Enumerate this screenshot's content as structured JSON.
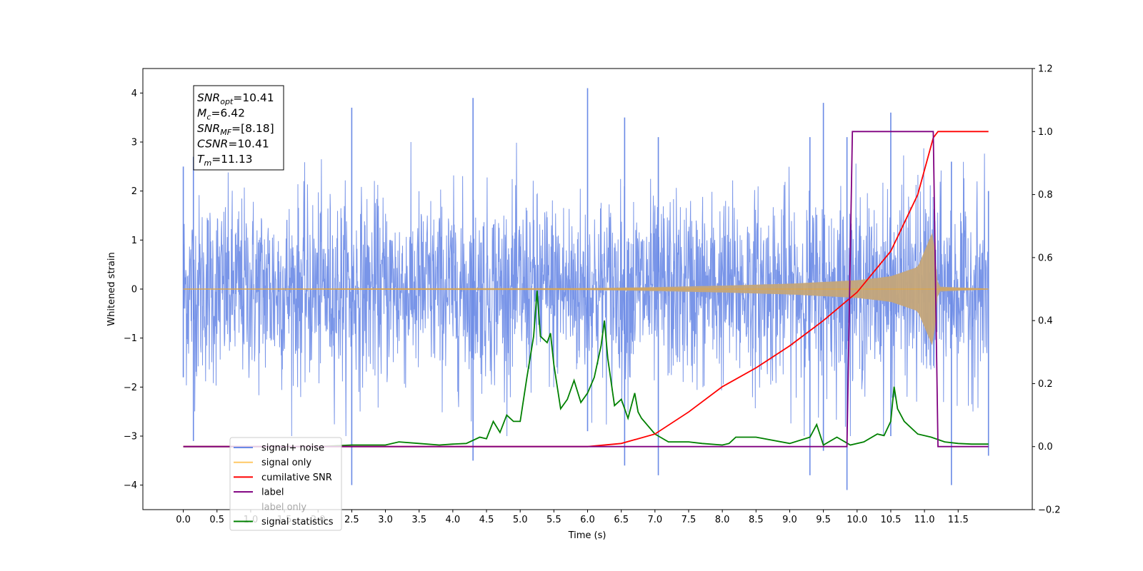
{
  "chart_data": {
    "type": "line",
    "title": "",
    "xlabel": "Time (s)",
    "ylabel": "Whitened strain",
    "y2label": "",
    "xlim": [
      -0.6,
      12.6
    ],
    "ylim": [
      -4.5,
      4.5
    ],
    "y2lim": [
      -0.2,
      1.2
    ],
    "xticks": [
      0.0,
      0.5,
      1.0,
      1.5,
      2.0,
      2.5,
      3.0,
      3.5,
      4.0,
      4.5,
      5.0,
      5.5,
      6.0,
      6.5,
      7.0,
      7.5,
      8.0,
      8.5,
      9.0,
      9.5,
      10.0,
      10.5,
      11.0,
      11.5
    ],
    "xtick_labels": [
      "0.0",
      "0.5",
      "1.0",
      "1.5",
      "2.0",
      "2.5",
      "3.0",
      "3.5",
      "4.0",
      "4.5",
      "5.0",
      "5.5",
      "6.0",
      "6.5",
      "7.0",
      "7.5",
      "8.0",
      "8.5",
      "9.0",
      "9.5",
      "10.0",
      "10.5",
      "11.0",
      "11.5"
    ],
    "yticks": [
      -4,
      -3,
      -2,
      -1,
      0,
      1,
      2,
      3,
      4
    ],
    "ytick_labels": [
      "−4",
      "−3",
      "−2",
      "−1",
      "0",
      "1",
      "2",
      "3",
      "4"
    ],
    "y2ticks": [
      -0.2,
      0.0,
      0.2,
      0.4,
      0.6,
      0.8,
      1.0,
      1.2
    ],
    "y2tick_labels": [
      "−0.2",
      "0.0",
      "0.2",
      "0.4",
      "0.6",
      "0.8",
      "1.0",
      "1.2"
    ],
    "grid": false,
    "legend_position": "lower-left",
    "colors": {
      "noise": "#6a8ae6",
      "signal": "#ffa500",
      "signal_fill": "#c4a57a",
      "cumulative_snr": "#ff0000",
      "label": "#800080",
      "statistics": "#008000"
    },
    "series": [
      {
        "name": "signal+ noise",
        "axis": "left",
        "style": "noise-band",
        "note_points": [
          {
            "x": 0.0,
            "y_max": 2.5,
            "y_min": -1.8
          },
          {
            "x": 0.15,
            "y_max": 2.7,
            "y_min": -3.1
          },
          {
            "x": 2.5,
            "y_max": 3.7,
            "y_min": -4.0
          },
          {
            "x": 4.3,
            "y_max": 3.9,
            "y_min": -3.5
          },
          {
            "x": 6.0,
            "y_max": 4.1,
            "y_min": -2.9
          },
          {
            "x": 6.55,
            "y_max": 3.5,
            "y_min": -3.6
          },
          {
            "x": 7.05,
            "y_max": 3.1,
            "y_min": -3.8
          },
          {
            "x": 9.3,
            "y_max": 3.1,
            "y_min": -3.8
          },
          {
            "x": 9.5,
            "y_max": 3.8,
            "y_min": -3.3
          },
          {
            "x": 9.85,
            "y_max": 3.1,
            "y_min": -4.1
          },
          {
            "x": 10.5,
            "y_max": 3.6,
            "y_min": -3.0
          },
          {
            "x": 11.4,
            "y_max": 2.6,
            "y_min": -4.0
          },
          {
            "x": 11.95,
            "y_max": 2.0,
            "y_min": -3.4
          }
        ]
      },
      {
        "name": "signal only",
        "axis": "left",
        "style": "chirp",
        "x_start": 0.0,
        "x_merge": 11.13,
        "x_end": 11.95,
        "amplitude_envelope": [
          {
            "x": 0.0,
            "amp": 0.01
          },
          {
            "x": 6.0,
            "amp": 0.02
          },
          {
            "x": 7.0,
            "amp": 0.04
          },
          {
            "x": 8.0,
            "amp": 0.07
          },
          {
            "x": 9.0,
            "amp": 0.11
          },
          {
            "x": 10.0,
            "amp": 0.18
          },
          {
            "x": 10.5,
            "amp": 0.26
          },
          {
            "x": 10.9,
            "amp": 0.45
          },
          {
            "x": 11.13,
            "amp": 1.2
          },
          {
            "x": 11.2,
            "amp": 0.05
          },
          {
            "x": 11.95,
            "amp": 0.01
          }
        ]
      },
      {
        "name": "cumilative SNR",
        "axis": "right",
        "x": [
          0.0,
          6.0,
          6.5,
          7.0,
          7.5,
          8.0,
          8.5,
          9.0,
          9.5,
          10.0,
          10.5,
          10.9,
          11.13,
          11.2,
          11.95
        ],
        "y": [
          0.0,
          0.0,
          0.01,
          0.04,
          0.11,
          0.19,
          0.25,
          0.32,
          0.4,
          0.49,
          0.62,
          0.8,
          0.98,
          1.0,
          1.0
        ]
      },
      {
        "name": "label",
        "axis": "right",
        "x": [
          0.0,
          9.85,
          9.93,
          11.13,
          11.2,
          11.95
        ],
        "y": [
          0.0,
          0.0,
          1.0,
          1.0,
          0.0,
          0.0
        ]
      },
      {
        "name": "signal statistics",
        "axis": "right",
        "x": [
          0.0,
          2.0,
          2.5,
          3.0,
          3.2,
          3.5,
          3.8,
          4.0,
          4.2,
          4.4,
          4.5,
          4.6,
          4.7,
          4.8,
          4.9,
          5.0,
          5.1,
          5.2,
          5.25,
          5.3,
          5.4,
          5.45,
          5.5,
          5.6,
          5.7,
          5.8,
          5.9,
          6.0,
          6.1,
          6.2,
          6.25,
          6.3,
          6.4,
          6.5,
          6.6,
          6.7,
          6.75,
          6.8,
          7.0,
          7.2,
          7.5,
          7.7,
          8.0,
          8.1,
          8.2,
          8.5,
          9.0,
          9.3,
          9.4,
          9.5,
          9.7,
          9.9,
          10.1,
          10.3,
          10.4,
          10.5,
          10.55,
          10.6,
          10.7,
          10.9,
          11.1,
          11.3,
          11.5,
          11.7,
          11.95
        ],
        "y": [
          0.0,
          0.0,
          0.005,
          0.005,
          0.015,
          0.01,
          0.005,
          0.008,
          0.01,
          0.03,
          0.025,
          0.08,
          0.045,
          0.1,
          0.08,
          0.08,
          0.22,
          0.35,
          0.495,
          0.35,
          0.33,
          0.36,
          0.26,
          0.12,
          0.15,
          0.21,
          0.14,
          0.17,
          0.22,
          0.32,
          0.4,
          0.28,
          0.13,
          0.15,
          0.09,
          0.17,
          0.11,
          0.09,
          0.04,
          0.015,
          0.015,
          0.01,
          0.005,
          0.01,
          0.03,
          0.03,
          0.01,
          0.03,
          0.07,
          0.005,
          0.03,
          0.005,
          0.015,
          0.04,
          0.035,
          0.08,
          0.19,
          0.12,
          0.08,
          0.04,
          0.03,
          0.015,
          0.01,
          0.008,
          0.008
        ]
      }
    ],
    "legend": [
      "signal+ noise",
      "signal only",
      "cumilative SNR",
      "label",
      "label only",
      "signal statistics"
    ],
    "annotation": {
      "lines": [
        {
          "base": "SNR",
          "sub": "opt",
          "value": "=10.41"
        },
        {
          "base": "M",
          "sub": "c",
          "value": "=6.42"
        },
        {
          "base": "SNR",
          "sub": "MF",
          "value": "=[8.18]"
        },
        {
          "base": "CSNR",
          "sub": "",
          "value": "=10.41"
        },
        {
          "base": "T",
          "sub": "m",
          "value": "=11.13"
        }
      ]
    }
  }
}
